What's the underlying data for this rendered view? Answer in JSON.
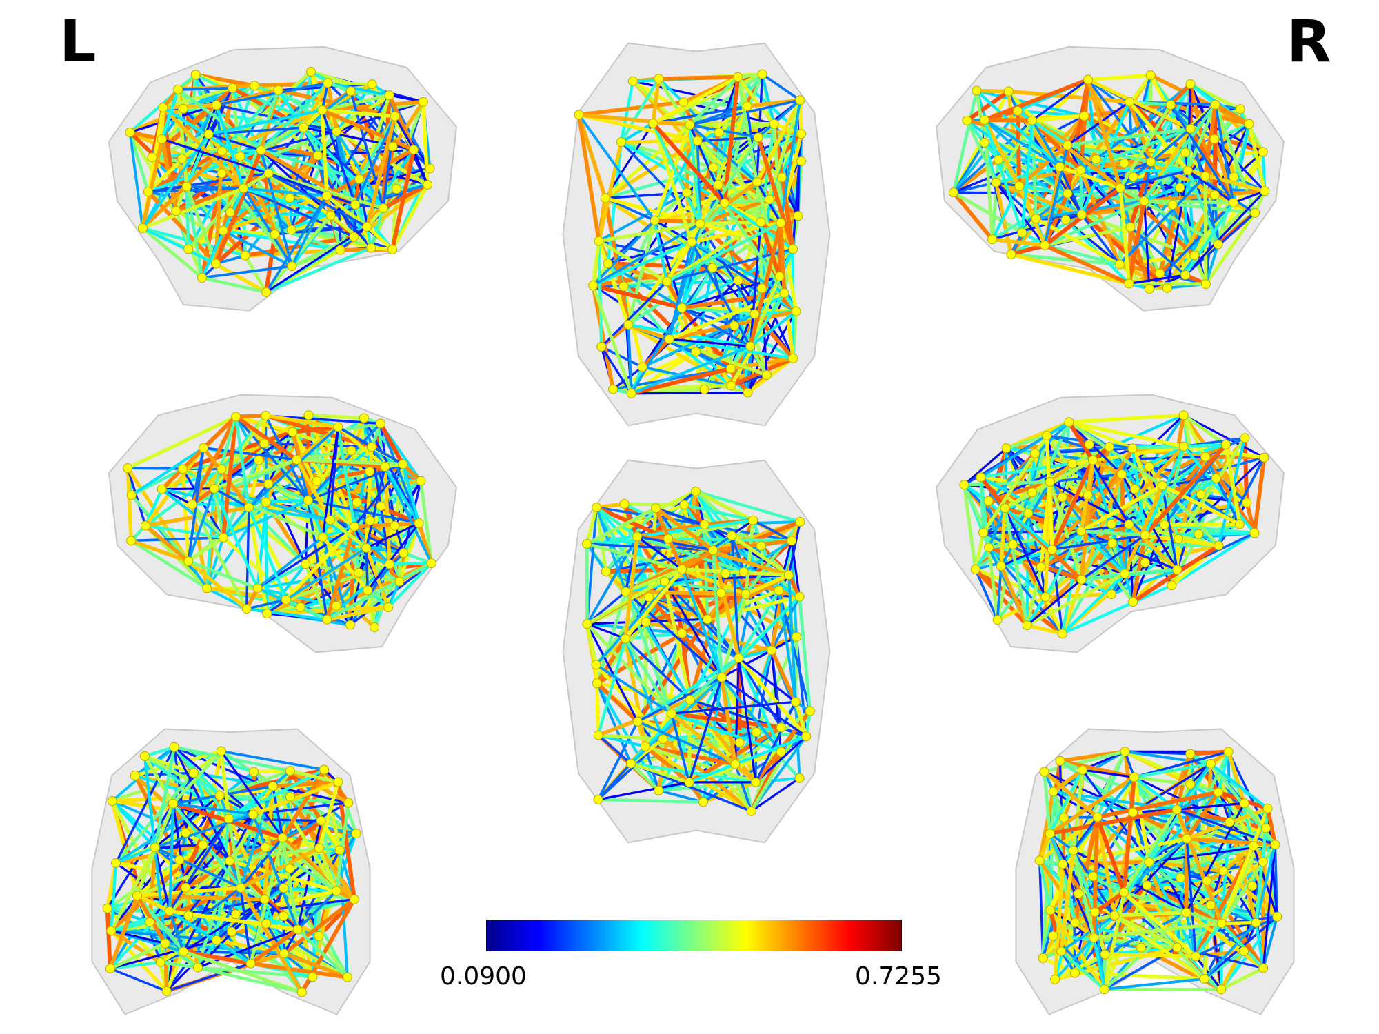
{
  "hemisphere_labels": {
    "left": "L",
    "right": "R"
  },
  "colorbar": {
    "colormap": "jet",
    "min_label": "0.0900",
    "max_label": "0.7255",
    "min": 0.09,
    "max": 0.7255,
    "colors": [
      "#00008f",
      "#0000ff",
      "#0080ff",
      "#00ffff",
      "#80ff80",
      "#ffff00",
      "#ff8000",
      "#ff0000",
      "#800000"
    ]
  },
  "node_color": "#ffff00",
  "node_edge_color": "#b8a800",
  "shell_color": "#d9d9d9",
  "views": [
    {
      "id": "lateral-left",
      "shape": "lateral-l"
    },
    {
      "id": "superior",
      "shape": "top"
    },
    {
      "id": "lateral-right",
      "shape": "lateral-r"
    },
    {
      "id": "medial-left",
      "shape": "lateral-r"
    },
    {
      "id": "inferior",
      "shape": "top"
    },
    {
      "id": "medial-right",
      "shape": "lateral-l"
    },
    {
      "id": "posterior",
      "shape": "coronal"
    },
    {
      "id": "anterior",
      "shape": "coronal"
    }
  ]
}
